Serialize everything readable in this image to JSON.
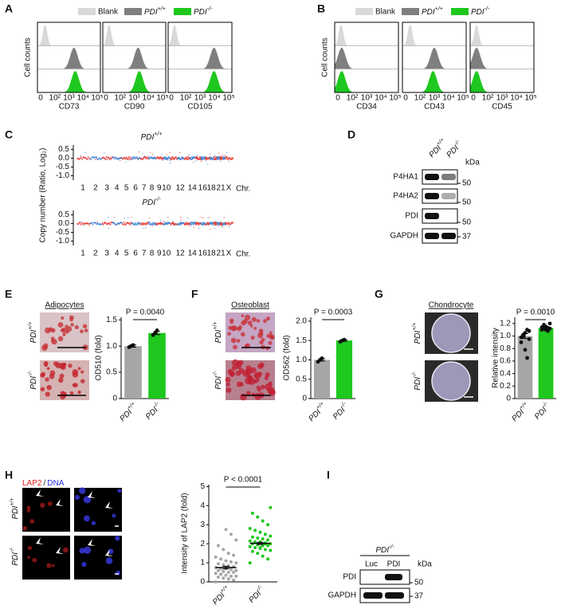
{
  "panel_labels": [
    "A",
    "B",
    "C",
    "D",
    "E",
    "F",
    "G",
    "H",
    "I"
  ],
  "flow": {
    "legend": [
      {
        "label": "Blank",
        "color": "#d9d9d9"
      },
      {
        "label": {
          "name": "PDI",
          "sup": "+/+"
        },
        "color": "#7f7f7f"
      },
      {
        "label": {
          "name": "PDI",
          "sup": "-/-"
        },
        "color": "#1ec81e"
      }
    ],
    "y_label": "Cell counts",
    "x_tick_labels": [
      "0",
      "10²",
      "10³",
      "10⁴",
      "10⁵"
    ],
    "panels": [
      [
        "CD73",
        "CD90",
        "CD105"
      ],
      [
        "CD34",
        "CD43",
        "CD45"
      ]
    ]
  },
  "blot_d": {
    "lanes": [
      {
        "name": "PDI",
        "sup": "+/+"
      },
      {
        "name": "PDI",
        "sup": "-/-"
      }
    ],
    "unit": "kDa",
    "rows": [
      "P4HA1",
      "P4HA2",
      "PDI",
      "GAPDH"
    ],
    "markers": [
      "50",
      "50",
      "50",
      "37"
    ]
  },
  "blot_i": {
    "group": {
      "name": "PDI",
      "sup": "-/-"
    },
    "lanes": [
      "Luc",
      "PDI"
    ],
    "unit": "kDa",
    "rows": [
      "PDI",
      "GAPDH"
    ],
    "markers": [
      "50",
      "37"
    ]
  },
  "images": {
    "E": "Adipocytes",
    "F": "Osteoblast",
    "G": "Chondrocyte",
    "H_stains": [
      "LAP2",
      "/",
      "DNA"
    ]
  },
  "image_rows": [
    {
      "name": "PDI",
      "sup": "+/+"
    },
    {
      "name": "PDI",
      "sup": "-/-"
    }
  ],
  "chart_data": [
    {
      "type": "copy-number",
      "title": {
        "name": "PDI",
        "sup": "+/+"
      },
      "y_label": "Copy number (Ratio, Log₂)",
      "categories": [
        "1",
        "2",
        "3",
        "4",
        "5",
        "6",
        "7",
        "8",
        "9",
        "10",
        null,
        "12",
        null,
        "14",
        null,
        "16",
        null,
        "18",
        null,
        null,
        "21",
        null,
        "X"
      ],
      "x_label": "Chr.",
      "ylim": [
        -1.25,
        0.75
      ],
      "yticks": [
        0.5,
        {
          "value": 0,
          "label": "0.0"
        },
        -0.5,
        {
          "value": -1,
          "label": "-1.0"
        }
      ],
      "colors": [
        "#e8413c",
        "#4a86d4"
      ]
    },
    {
      "type": "copy-number",
      "title": {
        "name": "PDI",
        "sup": "-/-"
      },
      "categories": [
        "1",
        "2",
        "3",
        "4",
        "5",
        "6",
        "7",
        "8",
        "9",
        "10",
        null,
        "12",
        null,
        "14",
        null,
        "16",
        null,
        "18",
        null,
        null,
        "21",
        null,
        "X"
      ],
      "x_label": "Chr.",
      "ylim": [
        -1.25,
        0.75
      ],
      "yticks": [
        0.5,
        {
          "value": 0,
          "label": "0.0"
        },
        -0.5,
        {
          "value": -1,
          "label": "-1.0"
        }
      ],
      "colors": [
        "#e8413c",
        "#4a86d4"
      ]
    },
    {
      "type": "bar",
      "y_label": "OD510 (fold)",
      "categories": [
        {
          "name": "PDI",
          "sup": "+/+"
        },
        {
          "name": "PDI",
          "sup": "-/-"
        }
      ],
      "values": [
        1.0,
        1.25
      ],
      "errors": [
        0.02,
        0.03
      ],
      "points": [
        [
          0.98,
          1.0,
          1.02
        ],
        [
          1.21,
          1.25,
          1.3
        ]
      ],
      "colors": [
        "#a6a6a6",
        "#1ec81e"
      ],
      "ylim": [
        0,
        1.55
      ],
      "yticks": [
        0,
        0.5,
        {
          "value": 1,
          "label": "1.0"
        },
        1.5
      ],
      "annotation": "P = 0.0040"
    },
    {
      "type": "bar",
      "y_label": "OD562 (fold)",
      "categories": [
        {
          "name": "PDI",
          "sup": "+/+"
        },
        {
          "name": "PDI",
          "sup": "-/-"
        }
      ],
      "values": [
        1.0,
        1.5
      ],
      "errors": [
        0.03,
        0.02
      ],
      "points": [
        [
          0.95,
          1.0,
          1.04
        ],
        [
          1.47,
          1.5,
          1.52
        ]
      ],
      "colors": [
        "#a6a6a6",
        "#1ec81e"
      ],
      "ylim": [
        0,
        2.1
      ],
      "yticks": [
        0,
        0.5,
        {
          "value": 1,
          "label": "1.0"
        },
        1.5,
        {
          "value": 2,
          "label": "2.0"
        }
      ],
      "annotation": "P = 0.0003"
    },
    {
      "type": "bar",
      "y_label": "Relative intensity",
      "categories": [
        {
          "name": "PDI",
          "sup": "+/+"
        },
        {
          "name": "PDI",
          "sup": "-/-"
        }
      ],
      "values": [
        1.0,
        1.13
      ],
      "errors": [
        0.04,
        0.02
      ],
      "points": [
        [
          0.98,
          1.02,
          1.05,
          1.1,
          0.95,
          0.9,
          1.0,
          0.78,
          0.65,
          1.08
        ],
        [
          1.1,
          1.12,
          1.15,
          1.08,
          1.2,
          1.14,
          1.18,
          1.1,
          1.13,
          1.12
        ]
      ],
      "colors": [
        "#a6a6a6",
        "#1ec81e"
      ],
      "ylim": [
        0,
        1.3
      ],
      "yticks": [
        0,
        0.2,
        0.4,
        0.6,
        0.8,
        {
          "value": 1,
          "label": "1.0"
        },
        1.2
      ],
      "annotation": "P = 0.0010"
    },
    {
      "type": "dot",
      "y_label": "Intensity of LAP2 (fold)",
      "categories": [
        {
          "name": "PDI",
          "sup": "+/+"
        },
        {
          "name": "PDI",
          "sup": "-/-"
        }
      ],
      "values": [
        0.75,
        2.02
      ],
      "errors": [
        0.07,
        0.06
      ],
      "points": [
        [
          0,
          0.1,
          0.15,
          0.2,
          0.25,
          0.3,
          0.3,
          0.35,
          0.4,
          0.45,
          0.5,
          0.5,
          0.55,
          0.6,
          0.6,
          0.65,
          0.7,
          0.7,
          0.75,
          0.8,
          0.85,
          0.9,
          0.95,
          1.0,
          1.05,
          1.1,
          1.2,
          1.3,
          1.4,
          1.5,
          1.7,
          1.9,
          2.2,
          2.5,
          2.75
        ],
        [
          1.0,
          1.2,
          1.35,
          1.5,
          1.6,
          1.65,
          1.7,
          1.75,
          1.8,
          1.85,
          1.9,
          1.9,
          1.95,
          2.0,
          2.0,
          2.05,
          2.1,
          2.1,
          2.15,
          2.2,
          2.25,
          2.3,
          2.35,
          2.4,
          2.5,
          2.6,
          2.7,
          2.8,
          3.0,
          3.2,
          3.4,
          3.6,
          3.9,
          2.0,
          1.8
        ]
      ],
      "colors": [
        "#a6a6a6",
        "#1ec81e"
      ],
      "ylim": [
        0,
        5.1
      ],
      "yticks": [
        0,
        1,
        2,
        3,
        4,
        5
      ],
      "annotation": "P < 0.0001"
    }
  ]
}
